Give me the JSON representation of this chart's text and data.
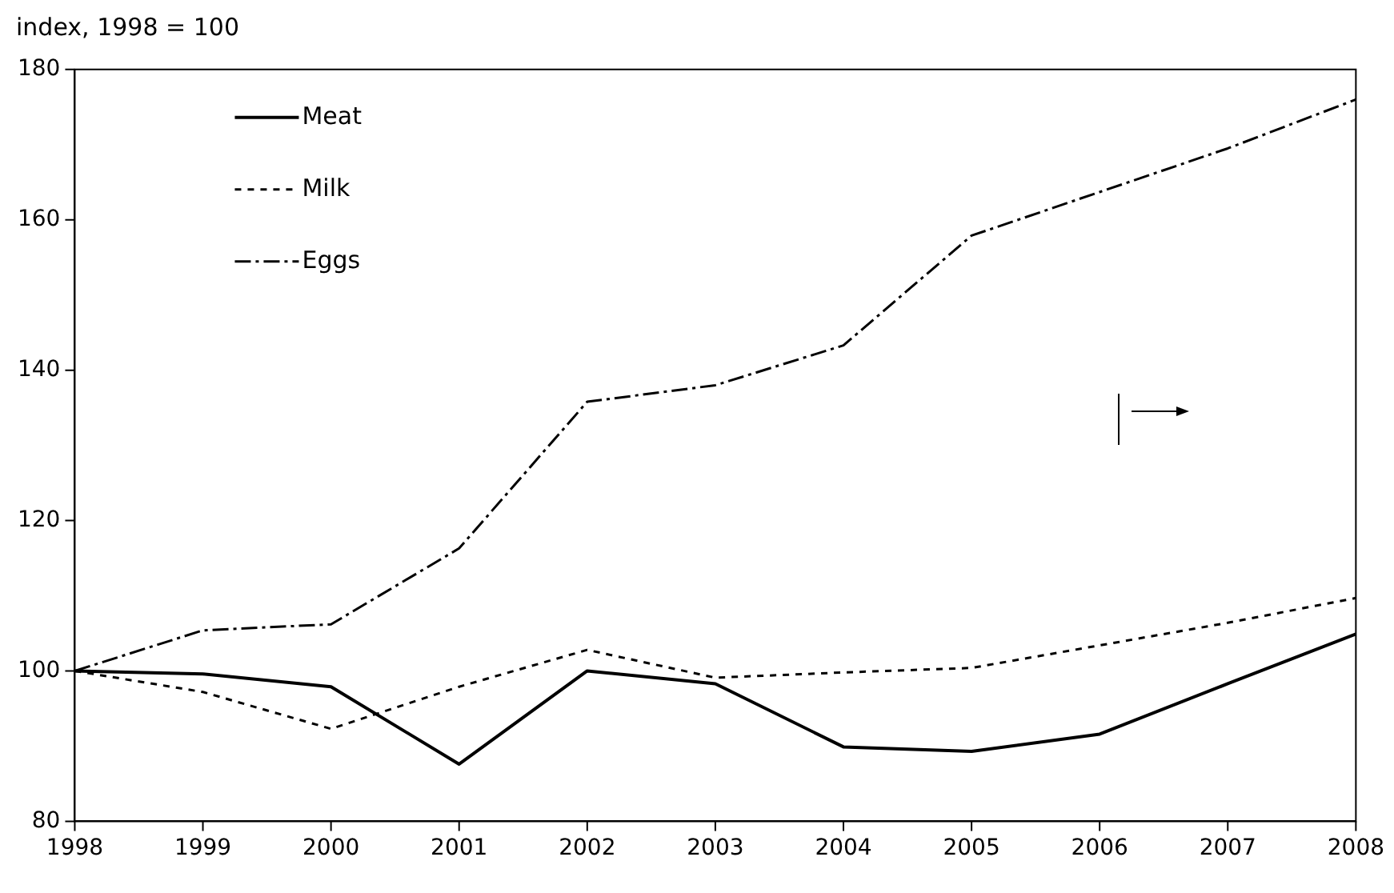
{
  "chart_data": {
    "type": "line",
    "ylabel": "index, 1998 = 100",
    "x": [
      1998,
      1999,
      2000,
      2001,
      2002,
      2003,
      2004,
      2005,
      2006,
      2007,
      2008
    ],
    "xlim": [
      1998,
      2008
    ],
    "xticks": [
      1998,
      1999,
      2000,
      2001,
      2002,
      2003,
      2004,
      2005,
      2006,
      2007,
      2008
    ],
    "ylim": [
      80,
      180
    ],
    "yticks": [
      80,
      100,
      120,
      140,
      160,
      180
    ],
    "grid": false,
    "legend": "top left",
    "marker": "none",
    "series": [
      {
        "name": "Meat",
        "color": "#000000",
        "line_style": "solid",
        "values": [
          100,
          99.6,
          97.9,
          87.6,
          100,
          98.3,
          89.9,
          89.3,
          91.6,
          98.3,
          104.9
        ]
      },
      {
        "name": "Milk",
        "color": "#000000",
        "line_style": "dotted",
        "values": [
          100,
          97.2,
          92.3,
          97.9,
          102.8,
          99.1,
          99.8,
          100.4,
          103.4,
          106.4,
          109.7
        ]
      },
      {
        "name": "Eggs",
        "color": "#000000",
        "line_style": "dashed",
        "values": [
          100,
          105.4,
          106.2,
          116.3,
          135.8,
          138,
          143.3,
          157.9,
          163.7,
          169.5,
          176
        ]
      }
    ]
  }
}
